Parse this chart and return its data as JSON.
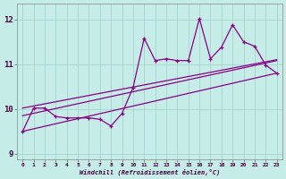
{
  "bg_color": "#c5ece6",
  "grid_color": "#9ecec8",
  "line_color": "#880088",
  "xlim": [
    -0.5,
    23.5
  ],
  "ylim": [
    8.88,
    12.35
  ],
  "xticks": [
    0,
    1,
    2,
    3,
    4,
    5,
    6,
    7,
    8,
    9,
    10,
    11,
    12,
    13,
    14,
    15,
    16,
    17,
    18,
    19,
    20,
    21,
    22,
    23
  ],
  "yticks": [
    9,
    10,
    11,
    12
  ],
  "xlabel": "Windchill (Refroidissement éolien,°C)",
  "zigzag_x": [
    0,
    1,
    2,
    3,
    4,
    5,
    6,
    7,
    8,
    9,
    10,
    11,
    12,
    13,
    14,
    15,
    16,
    17,
    18,
    19,
    20,
    21,
    22,
    23
  ],
  "zigzag_y": [
    9.5,
    10.02,
    10.02,
    9.83,
    9.8,
    9.8,
    9.8,
    9.77,
    9.62,
    9.9,
    10.48,
    11.58,
    11.08,
    11.12,
    11.08,
    11.08,
    12.02,
    11.12,
    11.38,
    11.88,
    11.5,
    11.4,
    10.98,
    10.8
  ],
  "trend1_x": [
    0,
    23
  ],
  "trend1_y": [
    9.5,
    10.8
  ],
  "trend2_x": [
    0,
    23
  ],
  "trend2_y": [
    9.85,
    11.08
  ],
  "trend3_x": [
    0,
    23
  ],
  "trend3_y": [
    10.02,
    11.1
  ]
}
